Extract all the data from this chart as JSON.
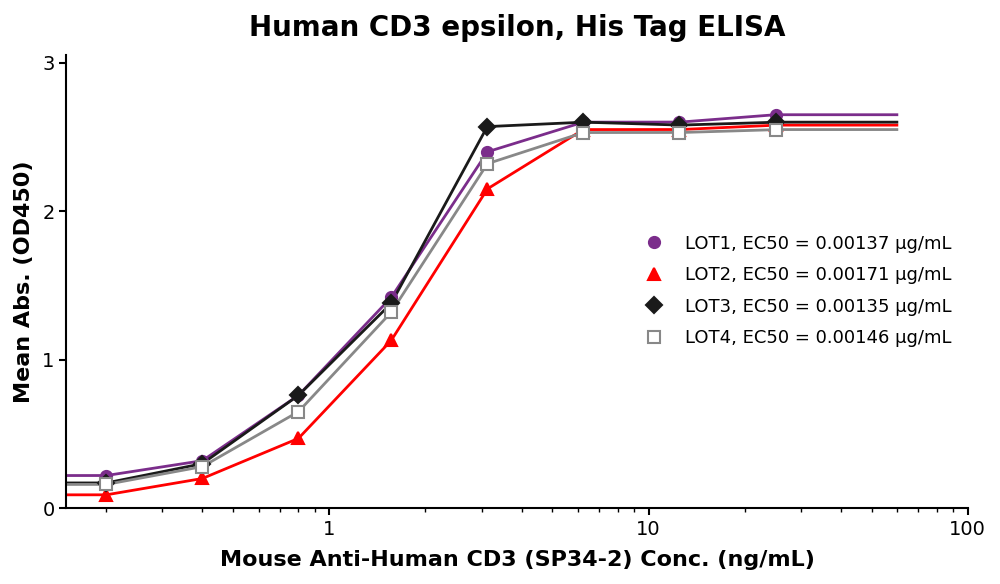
{
  "title": "Human CD3 epsilon, His Tag ELISA",
  "xlabel": "Mouse Anti-Human CD3 (SP34-2) Conc. (ng/mL)",
  "ylabel": "Mean Abs. (OD450)",
  "xlim": [
    0.15,
    100
  ],
  "ylim": [
    0,
    3.05
  ],
  "yticks": [
    0,
    1,
    2,
    3
  ],
  "background_color": "#ffffff",
  "title_fontsize": 20,
  "label_fontsize": 16,
  "tick_fontsize": 14,
  "legend_fontsize": 13,
  "linewidth": 2.0,
  "markersize": 8,
  "series": [
    {
      "label": "LOT1, EC50 = 0.00137 μg/mL",
      "color": "#7B2D8B",
      "marker": "o",
      "marker_facecolor": "#7B2D8B",
      "x": [
        0.2,
        0.4,
        0.8,
        1.563,
        3.125,
        6.25,
        12.5,
        25
      ],
      "y": [
        0.22,
        0.32,
        0.76,
        1.42,
        2.4,
        2.6,
        2.6,
        2.65
      ]
    },
    {
      "label": "LOT2, EC50 = 0.00171 μg/mL",
      "color": "#FF0000",
      "marker": "^",
      "marker_facecolor": "#FF0000",
      "x": [
        0.2,
        0.4,
        0.8,
        1.563,
        3.125,
        6.25,
        12.5,
        25
      ],
      "y": [
        0.09,
        0.2,
        0.47,
        1.13,
        2.15,
        2.55,
        2.55,
        2.58
      ]
    },
    {
      "label": "LOT3, EC50 = 0.00135 μg/mL",
      "color": "#1a1a1a",
      "marker": "D",
      "marker_facecolor": "#1a1a1a",
      "x": [
        0.2,
        0.4,
        0.8,
        1.563,
        3.125,
        6.25,
        12.5,
        25
      ],
      "y": [
        0.17,
        0.3,
        0.76,
        1.38,
        2.57,
        2.6,
        2.58,
        2.6
      ]
    },
    {
      "label": "LOT4, EC50 = 0.00146 μg/mL",
      "color": "#888888",
      "marker": "s",
      "marker_facecolor": "white",
      "x": [
        0.2,
        0.4,
        0.8,
        1.563,
        3.125,
        6.25,
        12.5,
        25
      ],
      "y": [
        0.16,
        0.28,
        0.65,
        1.32,
        2.32,
        2.53,
        2.53,
        2.55
      ]
    }
  ]
}
